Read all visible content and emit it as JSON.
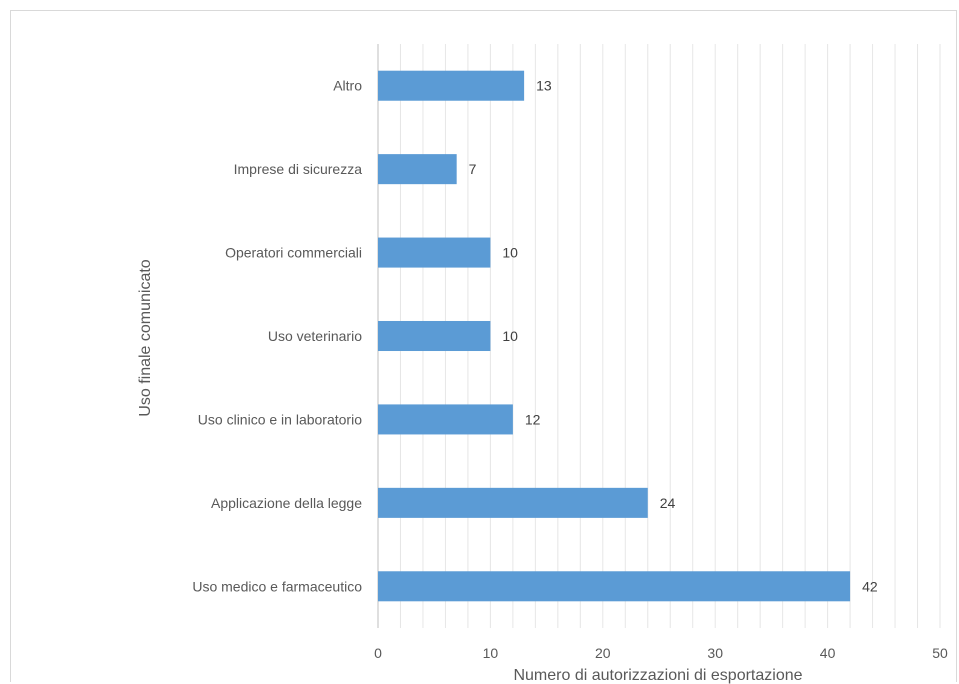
{
  "chart_data": {
    "type": "bar",
    "orientation": "horizontal",
    "categories": [
      "Altro",
      "Imprese di sicurezza",
      "Operatori commerciali",
      "Uso veterinario",
      "Uso clinico e in laboratorio",
      "Applicazione della legge",
      "Uso medico e farmaceutico"
    ],
    "values": [
      13,
      7,
      10,
      10,
      12,
      24,
      42
    ],
    "xlabel": "Numero di autorizzazioni di esportazione",
    "ylabel": "Uso finale comunicato",
    "xlim": [
      0,
      50
    ],
    "xticks": [
      0,
      10,
      20,
      30,
      40,
      50
    ],
    "bar_color": "#5b9bd5",
    "grid": true,
    "data_labels": true
  }
}
